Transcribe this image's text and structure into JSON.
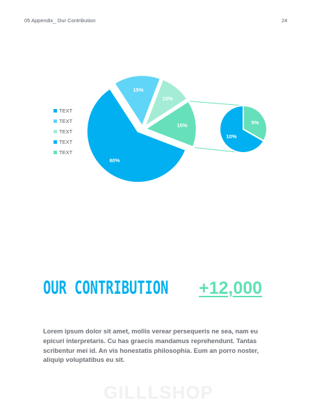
{
  "header": {
    "section_title": "05 Appendix_ Our Contribution",
    "page_number": "24"
  },
  "chart_data": {
    "type": "pie",
    "legend_placement": "left",
    "legend": [
      "TEXT",
      "TEXT",
      "TEXT",
      "TEXT",
      "TEXT"
    ],
    "colors": [
      "#00b0f0",
      "#60d5f7",
      "#a5ecd6",
      "#00b0f0",
      "#66e0ba"
    ],
    "main_pie": {
      "slices": [
        {
          "label": "60%",
          "value": 60,
          "color": "#00b0f0"
        },
        {
          "label": "15%",
          "value": 15,
          "color": "#60d5f7"
        },
        {
          "label": "10%",
          "value": 10,
          "color": "#a5ecd6"
        },
        {
          "label": "15%",
          "value": 15,
          "color": "#66e0ba"
        }
      ]
    },
    "secondary_pie": {
      "slices": [
        {
          "label": "10%",
          "value": 10,
          "color": "#00b0f0"
        },
        {
          "label": "5%",
          "value": 5,
          "color": "#66e0ba"
        }
      ]
    }
  },
  "contribution": {
    "title": "OUR CONTRIBUTION",
    "value": "+12,000",
    "body": "Lorem ipsum dolor sit amet, mollis verear persequeris ne sea, nam eu epicuri interpretaris. Cu has graecis mandamus reprehendunt. Tantas scribentur mei id. An vis honestatis philosophia. Eum an porro noster, aliquip voluptatibus eu sit."
  },
  "watermark": "GILLLSHOP"
}
